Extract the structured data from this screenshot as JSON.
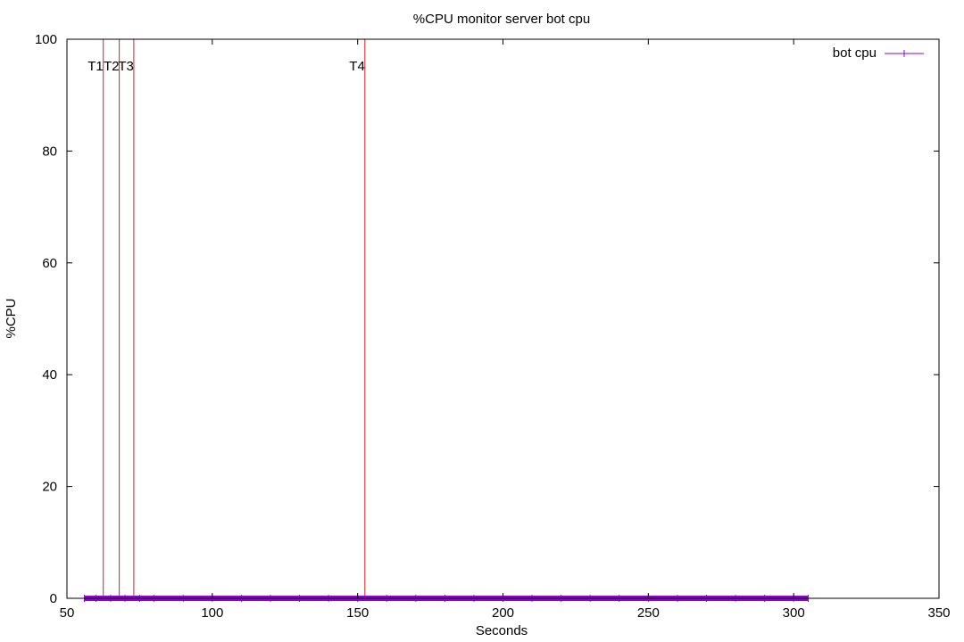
{
  "chart_data": {
    "type": "line",
    "title": "%CPU monitor server bot cpu",
    "xlabel": "Seconds",
    "ylabel": "%CPU",
    "xlim": [
      50,
      350
    ],
    "ylim": [
      0,
      100
    ],
    "x_ticks": [
      50,
      100,
      150,
      200,
      250,
      300,
      350
    ],
    "y_ticks": [
      0,
      20,
      40,
      60,
      80,
      100
    ],
    "grid": false,
    "legend_position": "top-right",
    "series": [
      {
        "name": "bot cpu",
        "color": "#9400d3",
        "x": [
          56,
          60,
          65,
          70,
          75,
          80,
          90,
          100,
          110,
          120,
          130,
          140,
          150,
          160,
          170,
          180,
          190,
          200,
          210,
          220,
          230,
          240,
          250,
          260,
          270,
          280,
          290,
          300,
          305
        ],
        "y": [
          0,
          0,
          0,
          0,
          0,
          0,
          0,
          0,
          0,
          0,
          0,
          0,
          0,
          0,
          0,
          0,
          0,
          0,
          0,
          0,
          0,
          0,
          0,
          0,
          0,
          0,
          0,
          0,
          0
        ]
      }
    ],
    "markers": [
      {
        "label": "T1",
        "x": 62.5
      },
      {
        "label": "T2",
        "x": 68
      },
      {
        "label": "T3",
        "x": 73
      },
      {
        "label": "T4",
        "x": 152.5
      }
    ],
    "marker_color": "#e41a1c"
  }
}
